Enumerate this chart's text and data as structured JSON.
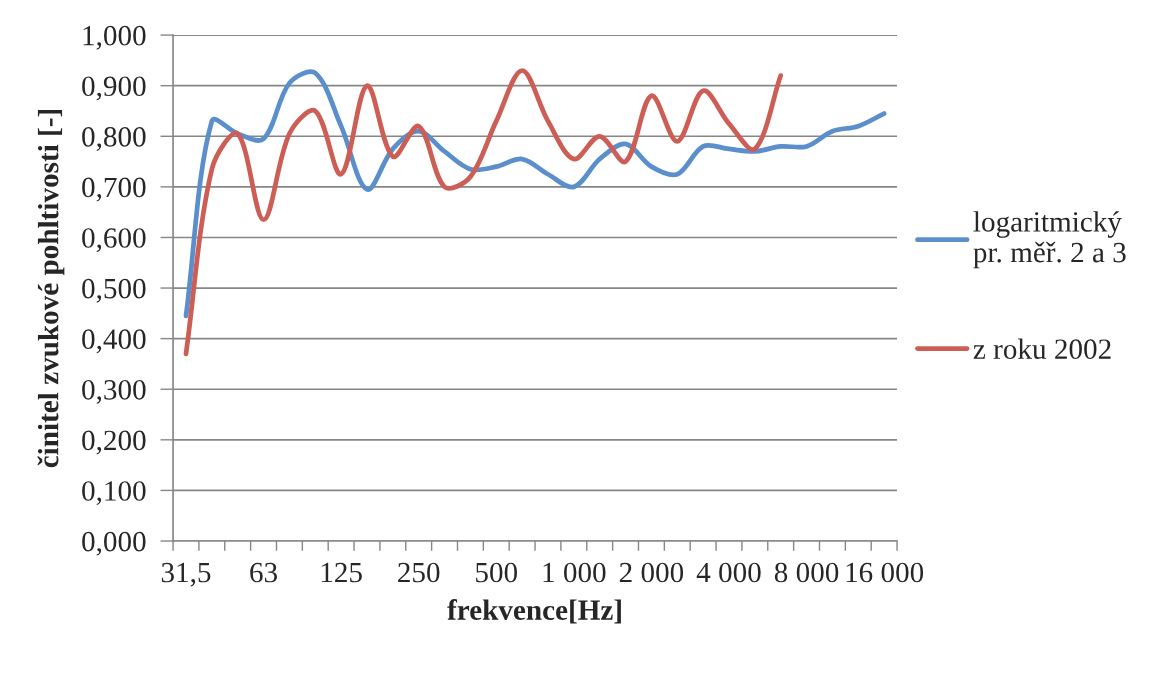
{
  "chart_data": {
    "type": "line",
    "categories": [
      "31,5",
      null,
      null,
      "63",
      null,
      null,
      "125",
      null,
      null,
      "250",
      null,
      null,
      "500",
      null,
      null,
      "1 000",
      null,
      null,
      "2 000",
      null,
      null,
      "4 000",
      null,
      null,
      "8 000",
      null,
      null,
      "16 000"
    ],
    "series": [
      {
        "name": "logaritmický pr. měř. 2 a 3",
        "color": "#5b8fcb",
        "values": [
          0.445,
          0.83,
          0.805,
          0.795,
          0.905,
          0.925,
          0.82,
          0.695,
          0.775,
          0.81,
          0.77,
          0.735,
          0.74,
          0.755,
          0.725,
          0.7,
          0.755,
          0.785,
          0.74,
          0.725,
          0.78,
          0.775,
          0.77,
          0.78,
          0.78,
          0.81,
          0.82,
          0.845
        ]
      },
      {
        "name": "z roku 2002",
        "color": "#cc5e56",
        "values": [
          0.37,
          0.735,
          0.805,
          0.635,
          0.805,
          0.85,
          0.725,
          0.9,
          0.76,
          0.82,
          0.7,
          0.72,
          0.83,
          0.93,
          0.83,
          0.755,
          0.8,
          0.75,
          0.88,
          0.79,
          0.89,
          0.825,
          0.775,
          0.92,
          null,
          null,
          null,
          null
        ]
      }
    ],
    "xlabel": "frekvence[Hz]",
    "ylabel": "činitel zvukové pohltivosti [-]",
    "ylim": [
      0,
      1
    ],
    "yticks": [
      {
        "value": 0,
        "label": "0,000"
      },
      {
        "value": 0.1,
        "label": "0,100"
      },
      {
        "value": 0.2,
        "label": "0,200"
      },
      {
        "value": 0.3,
        "label": "0,300"
      },
      {
        "value": 0.4,
        "label": "0,400"
      },
      {
        "value": 0.5,
        "label": "0,500"
      },
      {
        "value": 0.6,
        "label": "0,600"
      },
      {
        "value": 0.7,
        "label": "0,700"
      },
      {
        "value": 0.8,
        "label": "0,800"
      },
      {
        "value": 0.9,
        "label": "0,900"
      },
      {
        "value": 1,
        "label": "1,000"
      }
    ],
    "grid": "y",
    "legend": "right"
  }
}
